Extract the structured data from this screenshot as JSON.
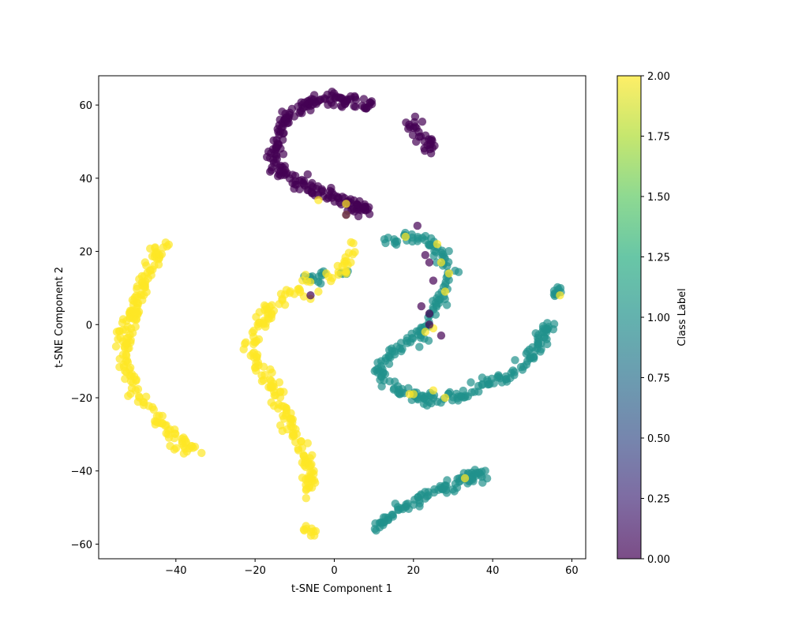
{
  "chart_data": {
    "type": "scatter",
    "title": "",
    "xlabel": "t-SNE Component 1",
    "ylabel": "t-SNE Component 2",
    "xlim": [
      -59.5,
      63.5
    ],
    "ylim": [
      -64,
      68
    ],
    "xticks": [
      -40,
      -20,
      0,
      20,
      40,
      60
    ],
    "yticks": [
      -60,
      -40,
      -20,
      0,
      20,
      40,
      60
    ],
    "grid": false,
    "marker_alpha": 0.7,
    "colormap": "viridis",
    "colorbar": {
      "label": "Class Label",
      "min": 0.0,
      "max": 2.0,
      "ticks": [
        "0.00",
        "0.25",
        "0.50",
        "0.75",
        "1.00",
        "1.25",
        "1.50",
        "1.75",
        "2.00"
      ]
    },
    "class_colors": {
      "0": "#440154",
      "1": "#21918c",
      "2": "#fde725"
    },
    "clusters": [
      {
        "class": 0,
        "path": [
          [
            -15,
            47
          ],
          [
            -14,
            53
          ],
          [
            -12,
            57
          ],
          [
            -9,
            59
          ],
          [
            -5,
            61
          ],
          [
            -1,
            62
          ],
          [
            3,
            61
          ],
          [
            7,
            60
          ],
          [
            10,
            60
          ]
        ],
        "spread": 1.0,
        "count": 110
      },
      {
        "class": 0,
        "path": [
          [
            -15,
            48
          ],
          [
            -15,
            45
          ],
          [
            -14,
            42
          ],
          [
            -11,
            40
          ],
          [
            -8,
            38
          ],
          [
            -4,
            36
          ],
          [
            0,
            35
          ],
          [
            4,
            33
          ],
          [
            9,
            31
          ]
        ],
        "spread": 1.0,
        "count": 110
      },
      {
        "class": 0,
        "path": [
          [
            18,
            56
          ],
          [
            20,
            55
          ],
          [
            22,
            52
          ],
          [
            24,
            49
          ],
          [
            25,
            47
          ]
        ],
        "spread": 0.9,
        "count": 30
      },
      {
        "class": 1,
        "path": [
          [
            14,
            22
          ],
          [
            18,
            24
          ],
          [
            23,
            23
          ],
          [
            27,
            20
          ],
          [
            29,
            16
          ],
          [
            29,
            11
          ],
          [
            27,
            7
          ],
          [
            25,
            4
          ],
          [
            23,
            1
          ],
          [
            21,
            -3
          ],
          [
            17,
            -6
          ],
          [
            13,
            -9
          ],
          [
            11,
            -12
          ],
          [
            14,
            -17
          ],
          [
            18,
            -19
          ],
          [
            23,
            -20
          ],
          [
            28,
            -20
          ],
          [
            33,
            -19
          ],
          [
            38,
            -17
          ],
          [
            43,
            -14
          ],
          [
            47,
            -11
          ],
          [
            51,
            -7
          ],
          [
            53,
            -2
          ],
          [
            54,
            1
          ]
        ],
        "spread": 1.0,
        "count": 260
      },
      {
        "class": 1,
        "path": [
          [
            55,
            8
          ],
          [
            57,
            10
          ]
        ],
        "spread": 0.7,
        "count": 10
      },
      {
        "class": 1,
        "path": [
          [
            10,
            -56
          ],
          [
            14,
            -52
          ],
          [
            19,
            -49
          ],
          [
            24,
            -46
          ],
          [
            29,
            -44
          ],
          [
            34,
            -42
          ],
          [
            38,
            -40
          ]
        ],
        "spread": 0.8,
        "count": 90
      },
      {
        "class": 1,
        "path": [
          [
            -8,
            11
          ],
          [
            -4,
            13
          ],
          [
            0,
            13
          ],
          [
            3,
            14
          ]
        ],
        "spread": 0.8,
        "count": 20
      },
      {
        "class": 2,
        "path": [
          [
            -42,
            22
          ],
          [
            -44,
            21
          ],
          [
            -46,
            17
          ],
          [
            -48,
            13
          ],
          [
            -49,
            8
          ],
          [
            -51,
            3
          ],
          [
            -53,
            -3
          ],
          [
            -53,
            -8
          ],
          [
            -52,
            -14
          ],
          [
            -50,
            -19
          ],
          [
            -47,
            -23
          ],
          [
            -44,
            -26
          ],
          [
            -41,
            -30
          ],
          [
            -38,
            -33
          ],
          [
            -35,
            -34
          ]
        ],
        "spread": 1.0,
        "count": 180
      },
      {
        "class": 2,
        "path": [
          [
            -6,
            12
          ],
          [
            -9,
            10
          ],
          [
            -13,
            7
          ],
          [
            -17,
            3
          ],
          [
            -20,
            -2
          ],
          [
            -21,
            -6
          ],
          [
            -20,
            -11
          ],
          [
            -17,
            -14
          ],
          [
            -15,
            -18
          ],
          [
            -13,
            -23
          ],
          [
            -11,
            -28
          ],
          [
            -9,
            -33
          ],
          [
            -7,
            -38
          ],
          [
            -6,
            -42
          ],
          [
            -6,
            -46
          ]
        ],
        "spread": 1.0,
        "count": 170
      },
      {
        "class": 2,
        "path": [
          [
            -7,
            -55
          ],
          [
            -5,
            -57
          ]
        ],
        "spread": 0.6,
        "count": 10
      },
      {
        "class": 2,
        "path": [
          [
            -2,
            12
          ],
          [
            1,
            14
          ],
          [
            3,
            16
          ],
          [
            4,
            19
          ],
          [
            4,
            22
          ]
        ],
        "spread": 0.7,
        "count": 20
      }
    ],
    "highlight_points": [
      {
        "class": 2,
        "points": [
          [
            18,
            24
          ],
          [
            26,
            22
          ],
          [
            27,
            17
          ],
          [
            29,
            14
          ],
          [
            28,
            9
          ],
          [
            25,
            -1
          ],
          [
            23,
            -2
          ],
          [
            20,
            -19
          ],
          [
            25,
            -18
          ],
          [
            28,
            -20
          ],
          [
            19,
            -19
          ],
          [
            33,
            -42
          ],
          [
            57,
            8
          ],
          [
            -4,
            34
          ],
          [
            3,
            33
          ],
          [
            3,
            30
          ],
          [
            -6,
            7
          ],
          [
            -4,
            9
          ],
          [
            -2,
            14
          ],
          [
            3,
            14
          ]
        ]
      },
      {
        "class": 0,
        "points": [
          [
            23,
            19
          ],
          [
            24,
            17
          ],
          [
            25,
            12
          ],
          [
            22,
            5
          ],
          [
            24,
            0
          ],
          [
            27,
            -3
          ],
          [
            24,
            3
          ],
          [
            -6,
            8
          ],
          [
            3,
            30
          ],
          [
            21,
            27
          ]
        ]
      }
    ]
  }
}
